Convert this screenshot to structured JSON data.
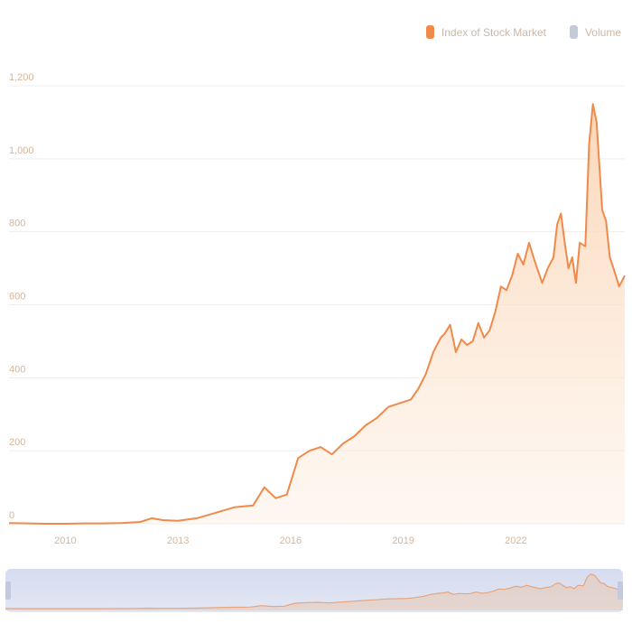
{
  "chart_data": {
    "type": "area",
    "title": "",
    "xlabel": "",
    "ylabel": "",
    "legend_position": "top-right",
    "grid": true,
    "ylim": [
      0,
      1200
    ],
    "y_ticks": [
      "0",
      "200",
      "400",
      "600",
      "800",
      "1,000",
      "1,200"
    ],
    "x_ticks": [
      {
        "x": 2010,
        "label": "2010"
      },
      {
        "x": 2013,
        "label": "2013"
      },
      {
        "x": 2016,
        "label": "2016"
      },
      {
        "x": 2019,
        "label": "2019"
      },
      {
        "x": 2022,
        "label": "2022"
      }
    ],
    "xlim": [
      2008.5,
      2024.9
    ],
    "series": [
      {
        "name": "Index of Stock Market",
        "color": "#f08a4b",
        "fill": "#fde3cc",
        "points": [
          [
            2008.5,
            2
          ],
          [
            2009.0,
            1
          ],
          [
            2009.5,
            0
          ],
          [
            2010.0,
            0
          ],
          [
            2010.5,
            1
          ],
          [
            2011.0,
            1
          ],
          [
            2011.5,
            2
          ],
          [
            2012.0,
            5
          ],
          [
            2012.3,
            15
          ],
          [
            2012.6,
            10
          ],
          [
            2013.0,
            8
          ],
          [
            2013.5,
            15
          ],
          [
            2014.0,
            30
          ],
          [
            2014.5,
            45
          ],
          [
            2015.0,
            50
          ],
          [
            2015.3,
            100
          ],
          [
            2015.6,
            70
          ],
          [
            2015.9,
            80
          ],
          [
            2016.2,
            180
          ],
          [
            2016.5,
            200
          ],
          [
            2016.8,
            210
          ],
          [
            2017.1,
            190
          ],
          [
            2017.4,
            220
          ],
          [
            2017.7,
            240
          ],
          [
            2018.0,
            270
          ],
          [
            2018.3,
            290
          ],
          [
            2018.6,
            320
          ],
          [
            2018.9,
            330
          ],
          [
            2019.2,
            340
          ],
          [
            2019.4,
            370
          ],
          [
            2019.6,
            410
          ],
          [
            2019.8,
            470
          ],
          [
            2020.0,
            510
          ],
          [
            2020.1,
            520
          ],
          [
            2020.25,
            545
          ],
          [
            2020.4,
            470
          ],
          [
            2020.55,
            505
          ],
          [
            2020.7,
            490
          ],
          [
            2020.85,
            500
          ],
          [
            2021.0,
            550
          ],
          [
            2021.15,
            510
          ],
          [
            2021.3,
            530
          ],
          [
            2021.45,
            580
          ],
          [
            2021.6,
            650
          ],
          [
            2021.75,
            640
          ],
          [
            2021.9,
            680
          ],
          [
            2022.05,
            740
          ],
          [
            2022.2,
            710
          ],
          [
            2022.35,
            770
          ],
          [
            2022.5,
            720
          ],
          [
            2022.7,
            660
          ],
          [
            2022.85,
            700
          ],
          [
            2023.0,
            730
          ],
          [
            2023.1,
            820
          ],
          [
            2023.2,
            850
          ],
          [
            2023.3,
            770
          ],
          [
            2023.4,
            700
          ],
          [
            2023.5,
            730
          ],
          [
            2023.6,
            660
          ],
          [
            2023.7,
            770
          ],
          [
            2023.85,
            760
          ],
          [
            2023.95,
            1040
          ],
          [
            2024.05,
            1150
          ],
          [
            2024.15,
            1100
          ],
          [
            2024.3,
            860
          ],
          [
            2024.4,
            830
          ],
          [
            2024.5,
            730
          ],
          [
            2024.6,
            700
          ],
          [
            2024.75,
            650
          ],
          [
            2024.9,
            680
          ]
        ]
      }
    ],
    "legend": [
      {
        "name": "Index of Stock Market",
        "color": "#f08a4b"
      },
      {
        "name": "Volume",
        "color": "#b9bfd3",
        "inactive": true
      }
    ]
  }
}
